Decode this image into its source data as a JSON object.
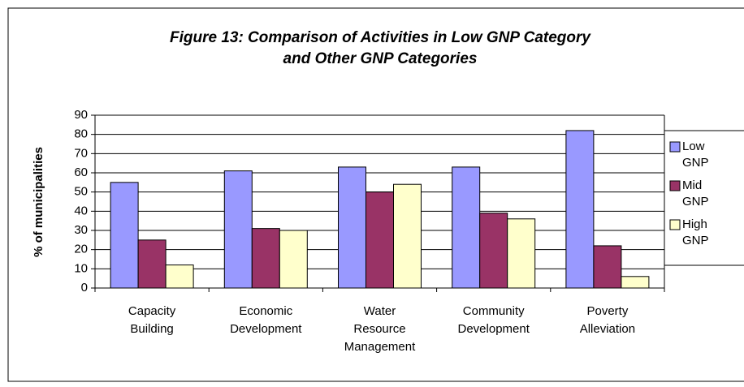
{
  "chart_data": {
    "type": "bar",
    "title": [
      "Figure 13: Comparison of Activities in Low GNP Category",
      "and Other GNP Categories"
    ],
    "ylabel": "% of municipalities",
    "categories": [
      "Capacity Building",
      "Economic Development",
      "Water Resource Management",
      "Community Development",
      "Poverty Alleviation"
    ],
    "series": [
      {
        "name": "Low GNP",
        "color": "#9999ff",
        "values": [
          55,
          61,
          63,
          63,
          82
        ]
      },
      {
        "name": "Mid GNP",
        "color": "#993366",
        "values": [
          25,
          31,
          50,
          39,
          22
        ]
      },
      {
        "name": "High GNP",
        "color": "#ffffcc",
        "values": [
          12,
          30,
          54,
          36,
          6
        ]
      }
    ],
    "ylim": [
      0,
      90
    ],
    "yticks": [
      0,
      10,
      20,
      30,
      40,
      50,
      60,
      70,
      80,
      90
    ],
    "grid": true,
    "legend": "right"
  }
}
